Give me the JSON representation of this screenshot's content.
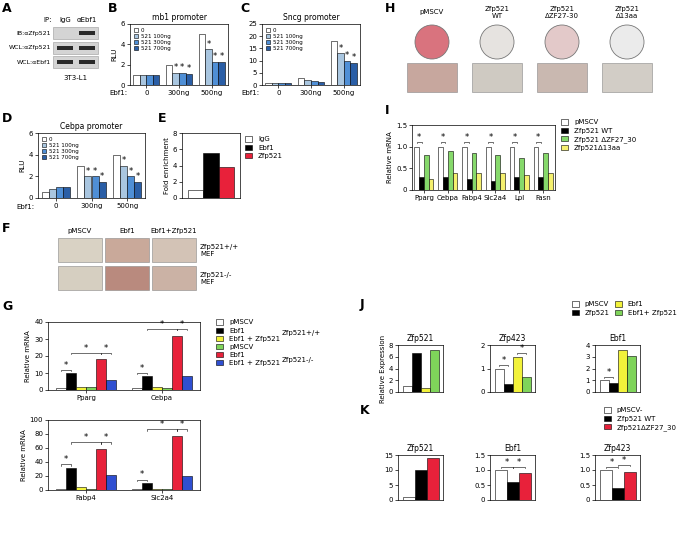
{
  "blot": {
    "panel": "A",
    "header": "IP:",
    "lanes": [
      "IgG",
      "αEbf1"
    ],
    "rows": [
      "IB:αZfp521",
      "WCL:αZfp521",
      "WCL:αEbf1"
    ],
    "bands": [
      [
        false,
        true
      ],
      [
        true,
        true
      ],
      [
        true,
        true
      ]
    ],
    "cell_line": "3T3-L1"
  },
  "stain_grid": {
    "panel": "F",
    "columns": [
      "pMSCV",
      "Ebf1",
      "Ebf1+Zfp521"
    ],
    "rows": [
      "Zfp521+/+\nMEF",
      "Zfp521-/-\nMEF"
    ]
  },
  "dishes": {
    "panel": "H",
    "labels": [
      "pMSCV",
      "Zfp521\nWT",
      "Zfp521\nΔZF27-30",
      "Zfp521\nΔ13aa"
    ]
  },
  "chart_data": [
    {
      "panel": "B",
      "type": "bar",
      "title": "mb1 promoter",
      "y_label": "RLU",
      "x_label": "Ebf1:",
      "categories": [
        "0",
        "300ng",
        "500ng"
      ],
      "series": [
        {
          "name": "0",
          "color": "#ffffff",
          "values": [
            1.0,
            2.0,
            5.0
          ]
        },
        {
          "name": "521 100ng",
          "color": "#a9c6e0",
          "values": [
            1.0,
            1.2,
            3.5
          ]
        },
        {
          "name": "521 300ng",
          "color": "#4f8fd6",
          "values": [
            1.0,
            1.2,
            2.3
          ]
        },
        {
          "name": "521 700ng",
          "color": "#2a5ea6",
          "values": [
            1.0,
            1.1,
            2.3
          ]
        }
      ],
      "ylim": [
        0,
        6
      ],
      "yticks": [
        0,
        2,
        4,
        6
      ],
      "legend": "upper left",
      "significance": {
        "label": "*",
        "bars": [
          [
            1,
            1
          ],
          [
            1,
            2
          ],
          [
            1,
            3
          ],
          [
            2,
            1
          ],
          [
            2,
            2
          ],
          [
            2,
            3
          ]
        ]
      }
    },
    {
      "panel": "C",
      "type": "bar",
      "title": "Sncg promoter",
      "x_label": "Ebf1:",
      "categories": [
        "0",
        "300ng",
        "500ng"
      ],
      "series": [
        {
          "name": "0",
          "color": "#ffffff",
          "values": [
            1.0,
            3.0,
            18.0
          ]
        },
        {
          "name": "521 100ng",
          "color": "#a9c6e0",
          "values": [
            1.0,
            2.0,
            13.0
          ]
        },
        {
          "name": "521 300ng",
          "color": "#4f8fd6",
          "values": [
            1.0,
            1.5,
            10.0
          ]
        },
        {
          "name": "521 700ng",
          "color": "#2a5ea6",
          "values": [
            1.0,
            1.2,
            9.0
          ]
        }
      ],
      "ylim": [
        0,
        25
      ],
      "yticks": [
        0,
        5,
        10,
        15,
        20,
        25
      ],
      "legend": "upper left",
      "significance": {
        "label": "*",
        "bars": [
          [
            2,
            1
          ],
          [
            2,
            2
          ],
          [
            2,
            3
          ]
        ]
      }
    },
    {
      "panel": "D",
      "type": "bar",
      "title": "Cebpa promoter",
      "y_label": "RLU",
      "x_label": "Ebf1:",
      "categories": [
        "0",
        "300ng",
        "500ng"
      ],
      "series": [
        {
          "name": "0",
          "color": "#ffffff",
          "values": [
            0.6,
            3.0,
            4.0
          ]
        },
        {
          "name": "521 100ng",
          "color": "#a9c6e0",
          "values": [
            0.8,
            2.0,
            3.0
          ]
        },
        {
          "name": "521 300ng",
          "color": "#4f8fd6",
          "values": [
            1.0,
            2.0,
            2.0
          ]
        },
        {
          "name": "521 700ng",
          "color": "#2a5ea6",
          "values": [
            1.0,
            1.5,
            1.5
          ]
        }
      ],
      "ylim": [
        0,
        6
      ],
      "yticks": [
        0,
        2,
        4,
        6
      ],
      "legend": "upper left",
      "significance": {
        "label": "*",
        "bars": [
          [
            1,
            1
          ],
          [
            1,
            2
          ],
          [
            1,
            3
          ],
          [
            2,
            1
          ],
          [
            2,
            2
          ],
          [
            2,
            3
          ]
        ]
      }
    },
    {
      "panel": "E",
      "type": "bar",
      "y_label": "Fold enrichment",
      "categories": [
        null
      ],
      "series": [
        {
          "name": "IgG",
          "color": "#ffffff",
          "values": [
            1.0
          ]
        },
        {
          "name": "Ebf1",
          "color": "#000000",
          "values": [
            5.6
          ]
        },
        {
          "name": "Zfp521",
          "color": "#e8213a",
          "values": [
            3.8
          ]
        }
      ],
      "ylim": [
        0,
        8
      ],
      "yticks": [
        0,
        2,
        4,
        6,
        8
      ],
      "legend": "right",
      "tick_labels": "y"
    },
    {
      "panel": "G",
      "type": "bar",
      "y_label": "Relative mRNA",
      "categories": [
        "Pparg",
        "Cebpa"
      ],
      "series": [
        {
          "name": "pMSCV",
          "color": "#ffffff",
          "values": [
            1.0,
            1.0
          ]
        },
        {
          "name": "Ebf1",
          "color": "#000000",
          "values": [
            10.0,
            8.0
          ]
        },
        {
          "name": "Ebf1 + Zfp521",
          "color": "#f2f23a",
          "values": [
            2.0,
            1.5
          ]
        },
        {
          "name": "pMSCV",
          "color": "#7fd45a",
          "values": [
            1.5,
            1.0
          ]
        },
        {
          "name": "Ebf1",
          "color": "#e8213a",
          "values": [
            18.0,
            32.0
          ]
        },
        {
          "name": "Ebf1 + Zfp521",
          "color": "#2f4fd1",
          "values": [
            6.0,
            8.0
          ]
        }
      ],
      "group_labels": [
        "Zfp521+/+",
        "Zfp521-/-"
      ],
      "ylim": [
        0,
        40
      ],
      "yticks": [
        0,
        10,
        20,
        30,
        40
      ],
      "legend": "right",
      "significance": {
        "label": "*",
        "brackets": [
          [
            0,
            0,
            1
          ],
          [
            0,
            1,
            4
          ],
          [
            0,
            4,
            5
          ],
          [
            1,
            0,
            1
          ],
          [
            1,
            1,
            4
          ],
          [
            1,
            4,
            5
          ]
        ]
      }
    },
    {
      "type": "bar",
      "y_label": "Relative mRNA",
      "categories": [
        "Fabp4",
        "Slc2a4"
      ],
      "series": [
        {
          "color": "#ffffff",
          "values": [
            1.0,
            1.0
          ]
        },
        {
          "color": "#000000",
          "values": [
            32.0,
            10.0
          ]
        },
        {
          "color": "#f2f23a",
          "values": [
            5.0,
            2.0
          ]
        },
        {
          "color": "#7fd45a",
          "values": [
            1.0,
            1.0
          ]
        },
        {
          "color": "#e8213a",
          "values": [
            58.0,
            77.0
          ]
        },
        {
          "color": "#2f4fd1",
          "values": [
            22.0,
            20.0
          ]
        }
      ],
      "ylim": [
        0,
        100
      ],
      "yticks": [
        0,
        20,
        40,
        60,
        80,
        100
      ],
      "significance": {
        "label": "*",
        "brackets": [
          [
            0,
            0,
            1
          ],
          [
            0,
            1,
            4
          ],
          [
            0,
            4,
            5
          ],
          [
            1,
            0,
            1
          ],
          [
            1,
            1,
            4
          ],
          [
            1,
            4,
            5
          ]
        ]
      }
    },
    {
      "panel": "I",
      "type": "bar",
      "y_label": "Relative mRNA",
      "categories": [
        "Pparg",
        "Cebpa",
        "Fabp4",
        "Slc2a4",
        "Lpl",
        "Fasn"
      ],
      "series": [
        {
          "name": "pMSCV",
          "color": "#ffffff",
          "values": [
            1.0,
            1.0,
            1.0,
            1.0,
            1.0,
            1.0
          ]
        },
        {
          "name": "Zfp521 WT",
          "color": "#000000",
          "values": [
            0.3,
            0.3,
            0.25,
            0.2,
            0.3,
            0.3
          ]
        },
        {
          "name": "Zfp521 ΔZF27_30",
          "color": "#86d96b",
          "values": [
            0.8,
            0.9,
            0.85,
            0.8,
            0.75,
            0.85
          ]
        },
        {
          "name": "Zfp521Δ13aa",
          "color": "#f5f06e",
          "values": [
            0.25,
            0.4,
            0.4,
            0.4,
            0.35,
            0.4
          ]
        }
      ],
      "ylim": [
        0,
        1.5
      ],
      "yticks": [
        0,
        0.5,
        {
          "value": 1,
          "label": "1.0"
        },
        1.5
      ],
      "legend": "right",
      "significance": {
        "label": "*",
        "brackets": [
          [
            0,
            0,
            1
          ],
          [
            1,
            0,
            1
          ],
          [
            2,
            0,
            1
          ],
          [
            3,
            0,
            1
          ],
          [
            4,
            0,
            1
          ],
          [
            5,
            0,
            1
          ]
        ]
      }
    },
    {
      "panel": "J",
      "type": "bar",
      "title": "Zfp521",
      "y_label": "Relative Expression",
      "categories": [
        null
      ],
      "series": [
        {
          "color": "#ffffff",
          "values": [
            1.0
          ]
        },
        {
          "color": "#000000",
          "values": [
            6.7
          ]
        },
        {
          "color": "#f2f23a",
          "values": [
            0.6
          ]
        },
        {
          "color": "#7fd45a",
          "values": [
            7.2
          ]
        }
      ],
      "ylim": [
        0,
        8
      ],
      "yticks": [
        0,
        2,
        4,
        6,
        8
      ],
      "tick_labels": "y"
    },
    {
      "type": "bar",
      "title": "Zfp423",
      "categories": [
        null
      ],
      "series": [
        {
          "color": "#ffffff",
          "values": [
            1.0
          ]
        },
        {
          "color": "#000000",
          "values": [
            0.35
          ]
        },
        {
          "color": "#f2f23a",
          "values": [
            1.5
          ]
        },
        {
          "color": "#7fd45a",
          "values": [
            0.65
          ]
        }
      ],
      "ylim": [
        0,
        2
      ],
      "yticks": [
        0,
        1,
        2
      ],
      "tick_labels": "y",
      "significance": {
        "label": "*",
        "brackets": [
          [
            0,
            0,
            1
          ],
          [
            0,
            2,
            3
          ]
        ]
      }
    },
    {
      "type": "bar",
      "title": "Ebf1",
      "categories": [
        null
      ],
      "series": [
        {
          "name": "pMSCV",
          "color": "#ffffff",
          "values": [
            1.0
          ]
        },
        {
          "name": "Zfp521",
          "color": "#000000",
          "values": [
            0.8
          ]
        },
        {
          "name": "Ebf1",
          "color": "#f2f23a",
          "values": [
            3.6
          ]
        },
        {
          "name": "Ebf1+ Zfp521",
          "color": "#7fd45a",
          "values": [
            3.1
          ]
        }
      ],
      "ylim": [
        0,
        4
      ],
      "yticks": [
        0,
        1,
        2,
        3,
        4
      ],
      "legend": "top",
      "tick_labels": "y",
      "significance": {
        "label": "*",
        "brackets": [
          [
            0,
            0,
            1
          ]
        ]
      }
    },
    {
      "panel": "K",
      "type": "bar",
      "title": "Zfp521",
      "categories": [
        null
      ],
      "series": [
        {
          "color": "#ffffff",
          "values": [
            1.0
          ]
        },
        {
          "color": "#000000",
          "values": [
            10.0
          ]
        },
        {
          "color": "#e8213a",
          "values": [
            14.0
          ]
        }
      ],
      "ylim": [
        0,
        15
      ],
      "yticks": [
        0,
        5,
        10,
        15
      ],
      "tick_labels": "y"
    },
    {
      "type": "bar",
      "title": "Ebf1",
      "categories": [
        null
      ],
      "series": [
        {
          "color": "#ffffff",
          "values": [
            1.0
          ]
        },
        {
          "color": "#000000",
          "values": [
            0.6
          ]
        },
        {
          "color": "#e8213a",
          "values": [
            0.9
          ]
        }
      ],
      "ylim": [
        0,
        1.5
      ],
      "yticks": [
        0,
        0.5,
        {
          "value": 1,
          "label": "1.0"
        },
        1.5
      ],
      "tick_labels": "y",
      "significance": {
        "label": "*",
        "brackets": [
          [
            0,
            0,
            1
          ],
          [
            0,
            1,
            2
          ]
        ]
      }
    },
    {
      "type": "bar",
      "title": "Zfp423",
      "categories": [
        null
      ],
      "series": [
        {
          "name": "pMSCV-",
          "color": "#ffffff",
          "values": [
            1.0
          ]
        },
        {
          "name": "Zfp521 WT",
          "color": "#000000",
          "values": [
            0.4
          ]
        },
        {
          "name": "Zfp521ΔZF27_30",
          "color": "#e8213a",
          "values": [
            0.95
          ]
        }
      ],
      "ylim": [
        0,
        1.5
      ],
      "yticks": [
        0,
        0.5,
        {
          "value": 1,
          "label": "1.0"
        },
        1.5
      ],
      "legend": "top",
      "tick_labels": "y",
      "significance": {
        "label": "*",
        "brackets": [
          [
            0,
            0,
            1
          ],
          [
            0,
            1,
            2
          ]
        ]
      }
    }
  ]
}
